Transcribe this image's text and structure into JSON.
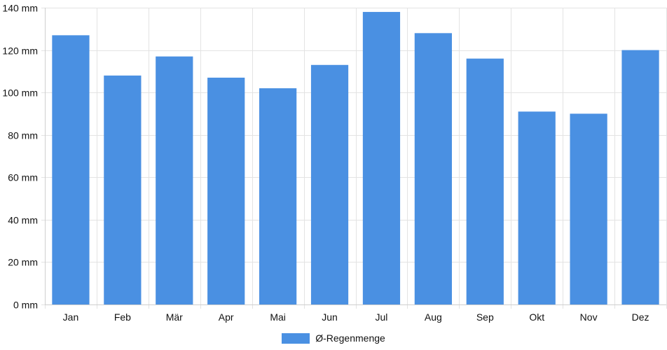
{
  "chart_data": {
    "type": "bar",
    "categories": [
      "Jan",
      "Feb",
      "Mär",
      "Apr",
      "Mai",
      "Jun",
      "Jul",
      "Aug",
      "Sep",
      "Okt",
      "Nov",
      "Dez"
    ],
    "series": [
      {
        "name": "Ø-Regenmenge",
        "values": [
          127,
          108,
          117,
          107,
          102,
          113,
          138,
          128,
          116,
          91,
          90,
          120
        ]
      }
    ],
    "y_ticks": [
      0,
      20,
      40,
      60,
      80,
      100,
      120,
      140
    ],
    "y_unit": "mm",
    "ylim": [
      0,
      140
    ],
    "title": "",
    "xlabel": "",
    "ylabel": "",
    "grid": true,
    "legend_placement": "bottom-center",
    "colors": {
      "bar": "#4a90e2",
      "grid": "#e3e3e3",
      "axis": "#cfcfcf",
      "text": "#111111"
    }
  }
}
